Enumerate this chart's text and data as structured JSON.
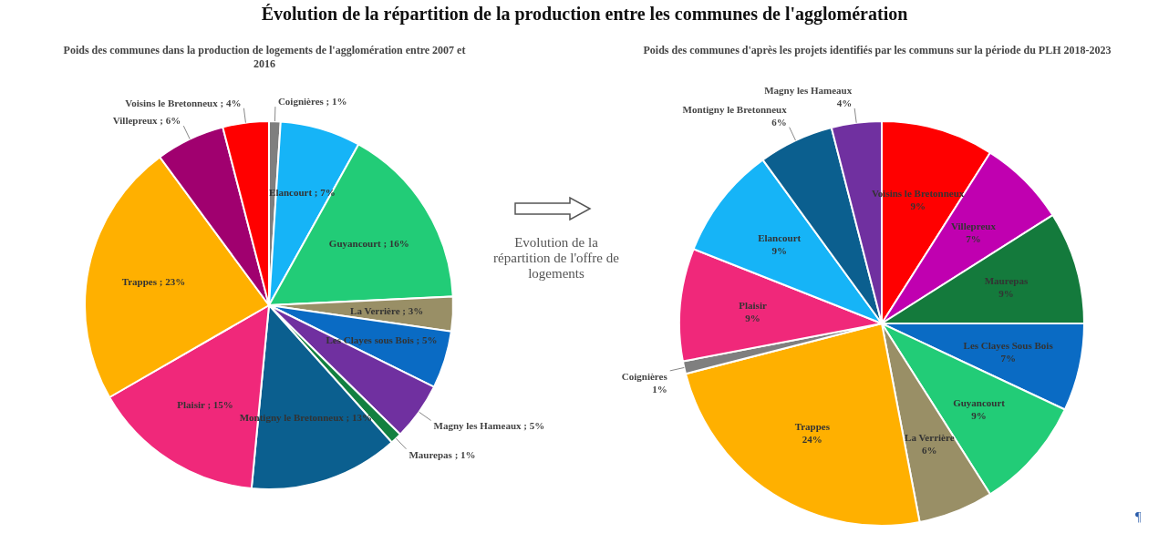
{
  "chart_data": [
    {
      "type": "pie",
      "title": "Poids des communes dans la production de logements de l'agglomération entre 2007 et 2016",
      "annotations": [
        "Évolution de la répartition de la production entre les communes de l'agglomération"
      ],
      "categories": [
        "Coignières",
        "Elancourt",
        "Guyancourt",
        "La Verrière",
        "Les Clayes sous Bois",
        "Magny les Hameaux",
        "Maurepas",
        "Montigny le Bretonneux",
        "Plaisir",
        "Trappes",
        "Villepreux",
        "Voisins le Bretonneux"
      ],
      "values": [
        1,
        7,
        16,
        3,
        5,
        5,
        1,
        13,
        15,
        23,
        6,
        4
      ],
      "colors": [
        "#7f7f7f",
        "#16b4f7",
        "#22cc77",
        "#998f66",
        "#0a6bc4",
        "#7030a0",
        "#138040",
        "#0b5f8f",
        "#f0287a",
        "#ffb000",
        "#a0006f",
        "#ff0000"
      ],
      "value_labels": [
        "; 1%",
        "; 7%",
        "; 16%",
        "; 3%",
        "; 5%",
        "; 5%",
        "; 1%",
        "; 13%",
        "; 15%",
        "; 23%",
        "; 6%",
        "; 4%"
      ]
    },
    {
      "type": "pie",
      "title": "Poids des communes d'après les projets identifiés par les communs sur la période du PLH 2018-2023",
      "annotations": [
        "Evolution de la répartition de l'offre de logements",
        "¶"
      ],
      "categories": [
        "Voisins le Bretonneux",
        "Villepreux",
        "Maurepas",
        "Les Clayes Sous Bois",
        "Guyancourt",
        "La Verrière",
        "Trappes",
        "Coignières",
        "Plaisir",
        "Elancourt",
        "Montigny le Bretonneux",
        "Magny les Hameaux"
      ],
      "values": [
        9,
        7,
        9,
        7,
        9,
        6,
        24,
        1,
        9,
        9,
        6,
        4
      ],
      "colors": [
        "#ff0000",
        "#c000b0",
        "#147a3c",
        "#0a6bc4",
        "#22cc77",
        "#998f66",
        "#ffb000",
        "#7f7f7f",
        "#f0287a",
        "#16b4f7",
        "#0b5f8f",
        "#7030a0"
      ],
      "value_labels": [
        "9%",
        "7%",
        "9%",
        "7%",
        "9%",
        "6%",
        "24%",
        "1%",
        "9%",
        "9%",
        "6%",
        "4%"
      ]
    }
  ]
}
